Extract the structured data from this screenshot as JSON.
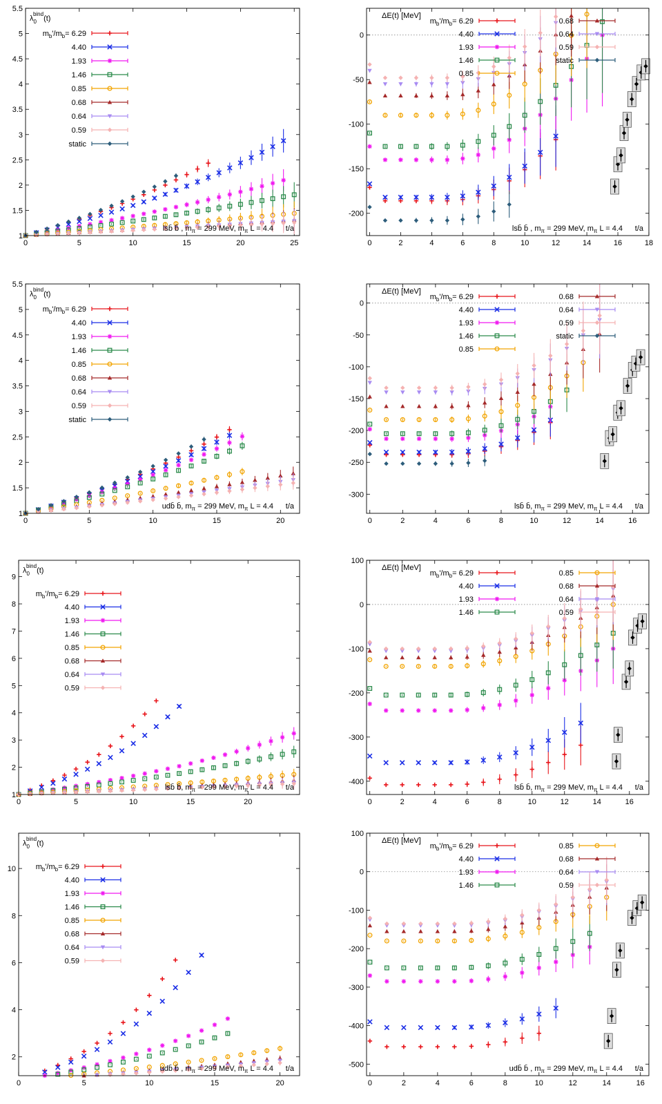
{
  "colors": {
    "6.29": "#e8141a",
    "4.40": "#1b2ee6",
    "1.93": "#f018f0",
    "1.46": "#2a8a4a",
    "0.85": "#f2a400",
    "0.68": "#a52a2a",
    "0.64": "#a88bf2",
    "0.59": "#f5b2b2",
    "static": "#2d5d7b",
    "continuum": "#000000"
  },
  "legend_prefix": "m",
  "legend_sub": "b",
  "legend_mid": "'/m",
  "legend_eq": "=",
  "chart_data": [
    {
      "type": "scatter",
      "title": "",
      "ylabel_main": "λ",
      "ylabel_sub": "0",
      "ylabel_sup": "bind",
      "ylabel_arg": "(t)",
      "xlabel": "t/a",
      "annotation": "lsb̄ b̄, m_π = 299 MeV, m_π L = 4.4",
      "annotation_parts": {
        "pre": "lsb̄ b̄ , m",
        "sub": "π",
        "mid": " = 299 MeV, m",
        "sub2": "π",
        "post": " L = 4.4"
      },
      "xlim": [
        0,
        25.5
      ],
      "ylim": [
        1,
        5.5
      ],
      "xticks": [
        0,
        5,
        10,
        15,
        20,
        25
      ],
      "yticks": [
        1,
        1.5,
        2,
        2.5,
        3,
        3.5,
        4,
        4.5,
        5,
        5.5
      ],
      "ytick_labels": [
        "1",
        "1.5",
        "2",
        "2.5",
        "3",
        "3.5",
        "4",
        "4.5",
        "5",
        "5.5"
      ],
      "legend": [
        "6.29",
        "4.40",
        "1.93",
        "1.46",
        "0.85",
        "0.68",
        "0.64",
        "0.59",
        "static"
      ],
      "series": [
        {
          "key": "6.29",
          "ratio": 0.29,
          "tmax": 17
        },
        {
          "key": "4.40",
          "ratio": 0.25,
          "tmax": 24
        },
        {
          "key": "1.93",
          "ratio": 0.175,
          "tmax": 24
        },
        {
          "key": "1.46",
          "ratio": 0.135,
          "tmax": 25
        },
        {
          "key": "0.85",
          "ratio": 0.083,
          "tmax": 25
        },
        {
          "key": "0.68",
          "ratio": 0.062,
          "tmax": 25
        },
        {
          "key": "0.64",
          "ratio": 0.058,
          "tmax": 25
        },
        {
          "key": "0.59",
          "ratio": 0.052,
          "tmax": 25
        },
        {
          "key": "static",
          "ratio": 0.305,
          "tmax": 14
        }
      ]
    },
    {
      "type": "scatter",
      "title": "",
      "ylabel": "ΔE(t) [MeV]",
      "xlabel": "t/a",
      "annotation_parts": {
        "pre": "lsb̄ b̄ , m",
        "sub": "π",
        "mid": " = 299 MeV, m",
        "sub2": "π",
        "post": " L = 4.4"
      },
      "xlim": [
        -0.2,
        18
      ],
      "ylim": [
        -225,
        30
      ],
      "xticks": [
        0,
        2,
        4,
        6,
        8,
        10,
        12,
        14,
        16,
        18
      ],
      "yticks": [
        0,
        -50,
        -100,
        -150,
        -200
      ],
      "ytick_labels": [
        "0",
        "-50",
        "-100",
        "-150",
        "-200"
      ],
      "legend_cols": [
        [
          "6.29",
          "4.40",
          "1.93",
          "1.46",
          "0.85"
        ],
        [
          "0.68",
          "0.64",
          "0.59",
          "static"
        ]
      ],
      "series": [
        {
          "key": "6.29",
          "plateau": -186,
          "tmax": 12
        },
        {
          "key": "4.40",
          "plateau": -182,
          "tmax": 12
        },
        {
          "key": "1.93",
          "plateau": -140,
          "tmax": 15
        },
        {
          "key": "1.46",
          "plateau": -125,
          "tmax": 15
        },
        {
          "key": "0.85",
          "plateau": -90,
          "tmax": 15
        },
        {
          "key": "0.68",
          "plateau": -68,
          "tmax": 16
        },
        {
          "key": "0.64",
          "plateau": -55,
          "tmax": 16
        },
        {
          "key": "0.59",
          "plateau": -48,
          "tmax": 16
        },
        {
          "key": "static",
          "plateau": -208,
          "tmax": 9
        }
      ],
      "continuum": [
        [
          15.8,
          -170
        ],
        [
          16.0,
          -145
        ],
        [
          16.2,
          -135
        ],
        [
          16.4,
          -110
        ],
        [
          16.6,
          -95
        ],
        [
          16.9,
          -72
        ],
        [
          17.2,
          -55
        ],
        [
          17.5,
          -42
        ],
        [
          17.8,
          -35
        ]
      ]
    },
    {
      "type": "scatter",
      "title": "",
      "ylabel_main": "λ",
      "ylabel_sub": "0",
      "ylabel_sup": "bind",
      "ylabel_arg": "(t)",
      "xlabel": "t/a",
      "annotation_parts": {
        "pre": "udb̄ b̄, m",
        "sub": "π",
        "mid": " = 299 MeV, m",
        "sub2": "π",
        "post": " L = 4.4"
      },
      "xlim": [
        0,
        21.5
      ],
      "ylim": [
        1,
        5.5
      ],
      "xticks": [
        0,
        5,
        10,
        15,
        20
      ],
      "yticks": [
        1,
        1.5,
        2,
        2.5,
        3,
        3.5,
        4,
        4.5,
        5,
        5.5
      ],
      "ytick_labels": [
        "1",
        "1.5",
        "2",
        "2.5",
        "3",
        "3.5",
        "4",
        "4.5",
        "5",
        "5.5"
      ],
      "legend": [
        "6.29",
        "4.40",
        "1.93",
        "1.46",
        "0.85",
        "0.68",
        "0.64",
        "0.59",
        "static"
      ],
      "series": [
        {
          "key": "6.29",
          "ratio": 0.335,
          "tmax": 16
        },
        {
          "key": "4.40",
          "ratio": 0.32,
          "tmax": 16
        },
        {
          "key": "1.93",
          "ratio": 0.3,
          "tmax": 17
        },
        {
          "key": "1.46",
          "ratio": 0.275,
          "tmax": 17
        },
        {
          "key": "0.85",
          "ratio": 0.195,
          "tmax": 17
        },
        {
          "key": "0.68",
          "ratio": 0.155,
          "tmax": 21
        },
        {
          "key": "0.64",
          "ratio": 0.135,
          "tmax": 21
        },
        {
          "key": "0.59",
          "ratio": 0.125,
          "tmax": 21
        },
        {
          "key": "static",
          "ratio": 0.35,
          "tmax": 14
        }
      ]
    },
    {
      "type": "scatter",
      "title": "",
      "ylabel": "ΔE(t) [MeV]",
      "xlabel": "t/a",
      "annotation_parts": {
        "pre": "lsb̄ b̄, m",
        "sub": "π",
        "mid": " = 299 MeV, m",
        "sub2": "π",
        "post": " L = 4.4"
      },
      "xlim": [
        -0.2,
        17
      ],
      "ylim": [
        -330,
        30
      ],
      "xticks": [
        0,
        2,
        4,
        6,
        8,
        10,
        12,
        14,
        16
      ],
      "yticks": [
        0,
        -50,
        -100,
        -150,
        -200,
        -250,
        -300
      ],
      "ytick_labels": [
        "0",
        "-50",
        "-100",
        "-150",
        "-200",
        "-250",
        "-300"
      ],
      "legend_cols": [
        [
          "6.29",
          "4.40",
          "1.93",
          "1.46",
          "0.85"
        ],
        [
          "0.68",
          "0.64",
          "0.59",
          "static"
        ]
      ],
      "series": [
        {
          "key": "6.29",
          "plateau": -238,
          "tmax": 11
        },
        {
          "key": "4.40",
          "plateau": -234,
          "tmax": 11
        },
        {
          "key": "1.93",
          "plateau": -213,
          "tmax": 11
        },
        {
          "key": "1.46",
          "plateau": -205,
          "tmax": 12
        },
        {
          "key": "0.85",
          "plateau": -183,
          "tmax": 13
        },
        {
          "key": "0.68",
          "plateau": -162,
          "tmax": 14
        },
        {
          "key": "0.64",
          "plateau": -140,
          "tmax": 14
        },
        {
          "key": "0.59",
          "plateau": -133,
          "tmax": 14
        },
        {
          "key": "static",
          "plateau": -252,
          "tmax": 7
        }
      ],
      "continuum": [
        [
          14.3,
          -248
        ],
        [
          14.6,
          -212
        ],
        [
          14.8,
          -206
        ],
        [
          15.1,
          -172
        ],
        [
          15.3,
          -165
        ],
        [
          15.7,
          -130
        ],
        [
          16.0,
          -105
        ],
        [
          16.2,
          -95
        ],
        [
          16.5,
          -85
        ]
      ]
    },
    {
      "type": "scatter",
      "title": "",
      "ylabel_main": "λ",
      "ylabel_sub": "0",
      "ylabel_sup": "bind",
      "ylabel_arg": "(t)",
      "xlabel": "t/a",
      "annotation_parts": {
        "pre": "lsb̄ b̄, m",
        "sub": "π",
        "mid": " = 299 MeV, m",
        "sub2": "π",
        "post": " L = 4.4"
      },
      "xlim": [
        0,
        24.5
      ],
      "ylim": [
        1,
        9.6
      ],
      "xticks": [
        0,
        5,
        10,
        15,
        20
      ],
      "yticks": [
        1,
        2,
        3,
        4,
        5,
        6,
        7,
        8,
        9
      ],
      "ytick_labels": [
        "1",
        "2",
        "3",
        "4",
        "5",
        "6",
        "7",
        "8",
        "9"
      ],
      "legend": [
        "6.29",
        "4.40",
        "1.93",
        "1.46",
        "0.85",
        "0.68",
        "0.64",
        "0.59"
      ],
      "series": [
        {
          "key": "6.29",
          "ratio": 0.56,
          "tmax": 12
        },
        {
          "key": "4.40",
          "ratio": 0.47,
          "tmax": 14
        },
        {
          "key": "1.93",
          "ratio": 0.232,
          "tmax": 24
        },
        {
          "key": "1.46",
          "ratio": 0.186,
          "tmax": 24
        },
        {
          "key": "0.85",
          "ratio": 0.109,
          "tmax": 24
        },
        {
          "key": "0.68",
          "ratio": 0.082,
          "tmax": 24
        },
        {
          "key": "0.64",
          "ratio": 0.072,
          "tmax": 24
        },
        {
          "key": "0.59",
          "ratio": 0.066,
          "tmax": 24
        }
      ]
    },
    {
      "type": "scatter",
      "title": "",
      "ylabel": "ΔE(t) [MeV]",
      "xlabel": "t/a",
      "annotation_parts": {
        "pre": "lsb̄ b̄, m",
        "sub": "π",
        "mid": " = 299 MeV, m",
        "sub2": "π",
        "post": " L = 4.4"
      },
      "xlim": [
        -0.2,
        17.2
      ],
      "ylim": [
        -430,
        100
      ],
      "xticks": [
        0,
        2,
        4,
        6,
        8,
        10,
        12,
        14,
        16
      ],
      "yticks": [
        100,
        0,
        -100,
        -200,
        -300,
        -400
      ],
      "ytick_labels": [
        "100",
        "0",
        "-100",
        "-200",
        "-300",
        "-400"
      ],
      "legend_cols": [
        [
          "6.29",
          "4.40",
          "1.93",
          "1.46"
        ],
        [
          "0.85",
          "0.68",
          "0.64",
          "0.59"
        ]
      ],
      "series": [
        {
          "key": "6.29",
          "plateau": -408,
          "tmax": 13
        },
        {
          "key": "4.40",
          "plateau": -358,
          "tmax": 13
        },
        {
          "key": "1.93",
          "plateau": -240,
          "tmax": 15
        },
        {
          "key": "1.46",
          "plateau": -205,
          "tmax": 15
        },
        {
          "key": "0.85",
          "plateau": -140,
          "tmax": 15
        },
        {
          "key": "0.68",
          "plateau": -120,
          "tmax": 15
        },
        {
          "key": "0.64",
          "plateau": -105,
          "tmax": 15
        },
        {
          "key": "0.59",
          "plateau": -100,
          "tmax": 15
        }
      ],
      "continuum": [
        [
          15.2,
          -355
        ],
        [
          15.3,
          -295
        ],
        [
          15.8,
          -175
        ],
        [
          16.0,
          -145
        ],
        [
          16.2,
          -75
        ],
        [
          16.5,
          -48
        ],
        [
          16.8,
          -38
        ]
      ]
    },
    {
      "type": "scatter",
      "title": "",
      "ylabel_main": "λ",
      "ylabel_sub": "0",
      "ylabel_sup": "bind",
      "ylabel_arg": "(t)",
      "xlabel": "t/a",
      "annotation_parts": {
        "pre": "udb̄ b̄ , m",
        "sub": "π",
        "mid": " = 299 MeV, m",
        "sub2": "π",
        "post": " L = 4.4"
      },
      "xlim": [
        0,
        21.5
      ],
      "ylim": [
        1.2,
        11.5
      ],
      "xticks": [
        0,
        5,
        10,
        15,
        20
      ],
      "yticks": [
        2,
        4,
        6,
        8,
        10
      ],
      "ytick_labels": [
        "2",
        "4",
        "6",
        "8",
        "10"
      ],
      "legend": [
        "6.29",
        "4.40",
        "1.93",
        "1.46",
        "0.85",
        "0.68",
        "0.64",
        "0.59"
      ],
      "series": [
        {
          "key": "6.29",
          "ratio": 0.68,
          "tmax": 12
        },
        {
          "key": "4.40",
          "ratio": 0.6,
          "tmax": 14
        },
        {
          "key": "1.93",
          "ratio": 0.37,
          "tmax": 16
        },
        {
          "key": "1.46",
          "ratio": 0.315,
          "tmax": 16
        },
        {
          "key": "0.85",
          "ratio": 0.2,
          "tmax": 20
        },
        {
          "key": "0.68",
          "ratio": 0.155,
          "tmax": 20
        },
        {
          "key": "0.64",
          "ratio": 0.142,
          "tmax": 20
        },
        {
          "key": "0.59",
          "ratio": 0.13,
          "tmax": 20
        }
      ]
    },
    {
      "type": "scatter",
      "title": "",
      "ylabel": "ΔE(t) [MeV]",
      "xlabel": "t/a",
      "annotation_parts": {
        "pre": "udb̄ b̄ , m",
        "sub": "π",
        "mid": " = 299 MeV, m",
        "sub2": "π",
        "post": " L = 4.4"
      },
      "xlim": [
        -0.2,
        16.5
      ],
      "ylim": [
        -530,
        100
      ],
      "xticks": [
        0,
        2,
        4,
        6,
        8,
        10,
        12,
        14,
        16
      ],
      "yticks": [
        100,
        0,
        -100,
        -200,
        -300,
        -400,
        -500
      ],
      "ytick_labels": [
        "100",
        "0",
        "-100",
        "-200",
        "-300",
        "-400",
        "-500"
      ],
      "legend_cols": [
        [
          "6.29",
          "4.40",
          "1.93",
          "1.46"
        ],
        [
          "0.85",
          "0.68",
          "0.64",
          "0.59"
        ]
      ],
      "series": [
        {
          "key": "6.29",
          "plateau": -455,
          "tmax": 10
        },
        {
          "key": "4.40",
          "plateau": -405,
          "tmax": 11
        },
        {
          "key": "1.93",
          "plateau": -285,
          "tmax": 13
        },
        {
          "key": "1.46",
          "plateau": -250,
          "tmax": 13
        },
        {
          "key": "0.85",
          "plateau": -180,
          "tmax": 14
        },
        {
          "key": "0.68",
          "plateau": -155,
          "tmax": 14
        },
        {
          "key": "0.64",
          "plateau": -140,
          "tmax": 14
        },
        {
          "key": "0.59",
          "plateau": -135,
          "tmax": 14
        }
      ],
      "continuum": [
        [
          14.1,
          -440
        ],
        [
          14.3,
          -375
        ],
        [
          14.6,
          -255
        ],
        [
          14.8,
          -205
        ],
        [
          15.5,
          -120
        ],
        [
          15.8,
          -95
        ],
        [
          16.1,
          -80
        ]
      ]
    }
  ]
}
